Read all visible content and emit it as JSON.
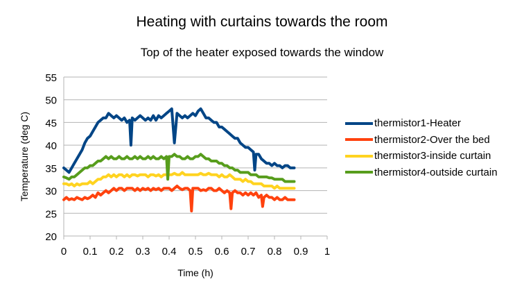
{
  "chart_data": {
    "type": "line",
    "title": "Heating with curtains towards the room",
    "subtitle": "Top of the heater exposed towards the window",
    "xlabel": "Time (h)",
    "ylabel": "Temperature (deg C)",
    "xlim": [
      0,
      1
    ],
    "ylim": [
      20,
      55
    ],
    "xticks": [
      "0",
      "0.1",
      "0.2",
      "0.3",
      "0.4",
      "0.5",
      "0.6",
      "0.7",
      "0.8",
      "0.9",
      "1"
    ],
    "yticks": [
      "20",
      "25",
      "30",
      "35",
      "40",
      "45",
      "50",
      "55"
    ],
    "grid": true,
    "legend_position": "right",
    "series": [
      {
        "name": "thermistor1-Heater",
        "color": "#004586",
        "x": [
          0,
          0.01,
          0.02,
          0.03,
          0.04,
          0.05,
          0.06,
          0.07,
          0.08,
          0.09,
          0.1,
          0.11,
          0.12,
          0.13,
          0.14,
          0.15,
          0.16,
          0.17,
          0.18,
          0.19,
          0.2,
          0.21,
          0.22,
          0.23,
          0.24,
          0.25,
          0.255,
          0.26,
          0.27,
          0.28,
          0.29,
          0.3,
          0.31,
          0.32,
          0.33,
          0.34,
          0.35,
          0.36,
          0.37,
          0.38,
          0.39,
          0.4,
          0.41,
          0.42,
          0.43,
          0.44,
          0.45,
          0.46,
          0.47,
          0.48,
          0.49,
          0.5,
          0.51,
          0.52,
          0.53,
          0.54,
          0.55,
          0.56,
          0.57,
          0.58,
          0.59,
          0.6,
          0.61,
          0.62,
          0.63,
          0.64,
          0.65,
          0.66,
          0.67,
          0.68,
          0.69,
          0.7,
          0.71,
          0.72,
          0.725,
          0.73,
          0.74,
          0.75,
          0.76,
          0.77,
          0.78,
          0.79,
          0.8,
          0.81,
          0.82,
          0.83,
          0.84,
          0.85,
          0.86,
          0.87,
          0.875
        ],
        "y": [
          35,
          34.5,
          34,
          35,
          36,
          37,
          38,
          39,
          40.5,
          41.5,
          42,
          43,
          44,
          45,
          45.5,
          46,
          46,
          47,
          46.5,
          46,
          46.5,
          46,
          45.5,
          46,
          45,
          45.5,
          40,
          46,
          45.5,
          46,
          46.5,
          46,
          45.5,
          46,
          45.5,
          46.5,
          45.5,
          46.5,
          46,
          46.5,
          47,
          47.5,
          48,
          40.5,
          47,
          46.5,
          46,
          46.5,
          46,
          46.5,
          47,
          46.5,
          47.5,
          48,
          47,
          46,
          46,
          45.5,
          45,
          45,
          44,
          44,
          43.5,
          43,
          42.5,
          42,
          41.5,
          41.5,
          40.5,
          40,
          39.5,
          39.5,
          39,
          38.5,
          34.5,
          38,
          38,
          37,
          36.5,
          36,
          36,
          35.5,
          36,
          35.5,
          35.5,
          35,
          35.5,
          35.5,
          35,
          35,
          35
        ]
      },
      {
        "name": "thermistor2-Over the bed",
        "color": "#ff420e",
        "x": [
          0,
          0.01,
          0.02,
          0.03,
          0.04,
          0.05,
          0.06,
          0.07,
          0.08,
          0.09,
          0.1,
          0.11,
          0.12,
          0.13,
          0.14,
          0.15,
          0.16,
          0.17,
          0.18,
          0.19,
          0.2,
          0.21,
          0.22,
          0.23,
          0.24,
          0.25,
          0.26,
          0.27,
          0.28,
          0.29,
          0.3,
          0.31,
          0.32,
          0.33,
          0.34,
          0.35,
          0.36,
          0.37,
          0.38,
          0.39,
          0.4,
          0.41,
          0.42,
          0.43,
          0.44,
          0.45,
          0.46,
          0.47,
          0.48,
          0.485,
          0.49,
          0.5,
          0.51,
          0.52,
          0.53,
          0.54,
          0.55,
          0.56,
          0.57,
          0.58,
          0.59,
          0.6,
          0.61,
          0.62,
          0.63,
          0.635,
          0.64,
          0.65,
          0.66,
          0.67,
          0.68,
          0.69,
          0.7,
          0.71,
          0.72,
          0.73,
          0.74,
          0.75,
          0.755,
          0.76,
          0.77,
          0.78,
          0.79,
          0.8,
          0.81,
          0.82,
          0.83,
          0.84,
          0.85,
          0.86,
          0.87,
          0.875
        ],
        "y": [
          28,
          28.5,
          28,
          28.2,
          28,
          28.5,
          28.2,
          28,
          28.5,
          28.2,
          28.5,
          29,
          28.5,
          29.5,
          29,
          29.5,
          30,
          29.5,
          30,
          30.5,
          30,
          30.5,
          30.5,
          30,
          30.5,
          30.5,
          30.5,
          30,
          30.5,
          30,
          30.5,
          30.2,
          30.5,
          30,
          30.5,
          30.2,
          30.5,
          30,
          30.5,
          30.5,
          30.5,
          30,
          30.5,
          31,
          30.5,
          30.2,
          30.5,
          30.5,
          30,
          25.5,
          30.5,
          30.5,
          30.5,
          30,
          30.2,
          30,
          30.5,
          30.5,
          30,
          30,
          30.5,
          30,
          29.5,
          30,
          29.5,
          26,
          29.5,
          30,
          29.5,
          29.5,
          29,
          29.5,
          29,
          29.5,
          29,
          29.5,
          28.5,
          29,
          26.5,
          28.5,
          29,
          28.5,
          28.5,
          28,
          28.5,
          28,
          28,
          28.5,
          28,
          28,
          28,
          28
        ]
      },
      {
        "name": "thermistor3-inside curtain",
        "color": "#ffd320",
        "x": [
          0,
          0.01,
          0.02,
          0.03,
          0.04,
          0.05,
          0.06,
          0.07,
          0.08,
          0.09,
          0.1,
          0.11,
          0.12,
          0.13,
          0.14,
          0.15,
          0.16,
          0.17,
          0.18,
          0.19,
          0.2,
          0.21,
          0.22,
          0.23,
          0.24,
          0.25,
          0.26,
          0.27,
          0.28,
          0.29,
          0.3,
          0.31,
          0.32,
          0.33,
          0.34,
          0.35,
          0.36,
          0.37,
          0.38,
          0.39,
          0.4,
          0.41,
          0.42,
          0.43,
          0.44,
          0.45,
          0.46,
          0.47,
          0.48,
          0.49,
          0.5,
          0.51,
          0.52,
          0.53,
          0.54,
          0.55,
          0.56,
          0.57,
          0.58,
          0.59,
          0.6,
          0.61,
          0.62,
          0.63,
          0.64,
          0.65,
          0.66,
          0.67,
          0.68,
          0.69,
          0.7,
          0.71,
          0.72,
          0.73,
          0.74,
          0.75,
          0.76,
          0.77,
          0.78,
          0.79,
          0.8,
          0.81,
          0.82,
          0.83,
          0.84,
          0.85,
          0.86,
          0.87,
          0.875
        ],
        "y": [
          31.5,
          31.5,
          31.2,
          31.5,
          31,
          31.5,
          31.2,
          31.5,
          31.5,
          31.5,
          32,
          31.5,
          32,
          32.5,
          32.5,
          33,
          33,
          33.5,
          33,
          33.5,
          33,
          33.5,
          33.5,
          33,
          33.5,
          33,
          33.5,
          33.5,
          33.2,
          33.5,
          33.5,
          33.5,
          33,
          33.5,
          33.5,
          33.2,
          33.5,
          33,
          33.5,
          33.5,
          33.5,
          33.5,
          33.8,
          33.5,
          33.5,
          34,
          33.5,
          33.5,
          33.5,
          33.5,
          33.5,
          33.5,
          33.8,
          33.5,
          33.5,
          33.8,
          33.5,
          33.5,
          33.5,
          33,
          33.5,
          33,
          33,
          33.5,
          33,
          32.5,
          32.5,
          32.5,
          32,
          32.5,
          32,
          32,
          31.5,
          31.5,
          31.5,
          31.5,
          31,
          31,
          31,
          31,
          30.5,
          31,
          30.5,
          30.5,
          30.5,
          30.5,
          30.5,
          30.5,
          30.5
        ]
      },
      {
        "name": "thermistor4-outside curtain",
        "color": "#579d1c",
        "x": [
          0,
          0.01,
          0.02,
          0.03,
          0.04,
          0.05,
          0.06,
          0.07,
          0.08,
          0.09,
          0.1,
          0.11,
          0.12,
          0.13,
          0.14,
          0.15,
          0.16,
          0.17,
          0.18,
          0.19,
          0.2,
          0.21,
          0.22,
          0.23,
          0.24,
          0.25,
          0.26,
          0.27,
          0.28,
          0.29,
          0.3,
          0.31,
          0.32,
          0.33,
          0.34,
          0.35,
          0.36,
          0.37,
          0.38,
          0.39,
          0.395,
          0.4,
          0.41,
          0.42,
          0.43,
          0.44,
          0.45,
          0.46,
          0.47,
          0.48,
          0.49,
          0.5,
          0.51,
          0.52,
          0.53,
          0.54,
          0.55,
          0.56,
          0.57,
          0.58,
          0.59,
          0.6,
          0.61,
          0.62,
          0.63,
          0.64,
          0.65,
          0.66,
          0.67,
          0.68,
          0.69,
          0.7,
          0.71,
          0.72,
          0.73,
          0.74,
          0.75,
          0.76,
          0.77,
          0.78,
          0.79,
          0.8,
          0.81,
          0.82,
          0.83,
          0.84,
          0.85,
          0.86,
          0.87,
          0.875
        ],
        "y": [
          33,
          32.8,
          32.5,
          33,
          33,
          33.5,
          34,
          34.5,
          35,
          35,
          35.5,
          35.5,
          36,
          36.5,
          36.5,
          37,
          37.5,
          37,
          37.5,
          37,
          37,
          37.5,
          37,
          37,
          37.5,
          37,
          37,
          37.5,
          37,
          37.5,
          37,
          37,
          37.5,
          37,
          37.5,
          37,
          37,
          37.5,
          37,
          37.5,
          32.5,
          37.5,
          37.5,
          38,
          37.5,
          37.5,
          37,
          37,
          37.5,
          37,
          37,
          37.5,
          37.5,
          38,
          37.5,
          37,
          37,
          36.5,
          36.5,
          36.5,
          36,
          36,
          35.5,
          35.5,
          35,
          35,
          34.5,
          34.5,
          34,
          34,
          34,
          34,
          33.5,
          33.5,
          33.5,
          33,
          33,
          33,
          33,
          32.8,
          32.8,
          32.5,
          32.5,
          32.5,
          32.5,
          32,
          32,
          32,
          32,
          32
        ]
      }
    ]
  }
}
